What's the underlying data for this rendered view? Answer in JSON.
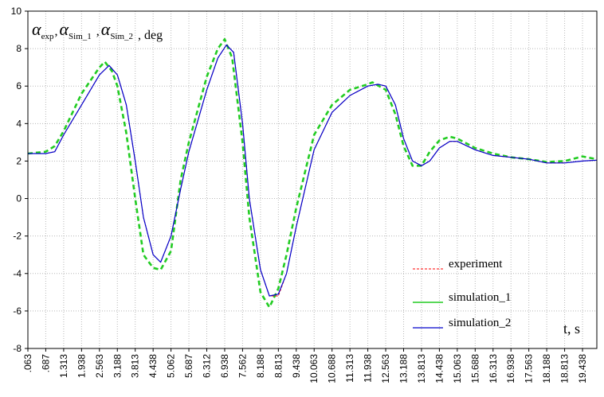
{
  "chart_data": {
    "type": "line",
    "title": "",
    "ylabel": {
      "parts": [
        {
          "sym": "α",
          "sub": "exp"
        },
        {
          "sym": "α",
          "sub": "Sim_1"
        },
        {
          "sym": "α",
          "sub": "Sim_2"
        }
      ],
      "unit": ", deg"
    },
    "xlabel": "t, s",
    "xlim": [
      0.063,
      19.938
    ],
    "ylim": [
      -8,
      10
    ],
    "yticks": [
      -8,
      -6,
      -4,
      -2,
      0,
      2,
      4,
      6,
      8,
      10
    ],
    "xticks": [
      ".063",
      ".687",
      "1.313",
      "1.938",
      "2.563",
      "3.188",
      "3.813",
      "4.438",
      "5.062",
      "5.687",
      "6.312",
      "6.938",
      "7.562",
      "8.188",
      "8.813",
      "9.438",
      "10.063",
      "10.688",
      "11.313",
      "11.938",
      "12.563",
      "13.188",
      "13.813",
      "14.438",
      "15.063",
      "15.688",
      "16.313",
      "16.938",
      "17.563",
      "18.188",
      "18.813",
      "19.438"
    ],
    "xtick_values": [
      0.063,
      0.687,
      1.313,
      1.938,
      2.563,
      3.188,
      3.813,
      4.438,
      5.062,
      5.687,
      6.312,
      6.938,
      7.562,
      8.188,
      8.813,
      9.438,
      10.063,
      10.688,
      11.313,
      11.938,
      12.563,
      13.188,
      13.813,
      14.438,
      15.063,
      15.688,
      16.313,
      16.938,
      17.563,
      18.188,
      18.813,
      19.438
    ],
    "grid": true,
    "legend_position": "bottom-right",
    "series": [
      {
        "name": "experiment",
        "color": "#ff0000",
        "style": "dashed-thin",
        "points": [
          [
            0.063,
            2.4
          ],
          [
            0.687,
            2.4
          ],
          [
            1.0,
            2.5
          ],
          [
            1.313,
            3.4
          ],
          [
            1.938,
            5.0
          ],
          [
            2.563,
            6.6
          ],
          [
            2.9,
            7.1
          ],
          [
            3.188,
            6.6
          ],
          [
            3.5,
            5.0
          ],
          [
            3.813,
            2.0
          ],
          [
            4.1,
            -1.0
          ],
          [
            4.438,
            -3.0
          ],
          [
            4.7,
            -3.4
          ],
          [
            5.062,
            -2.0
          ],
          [
            5.4,
            0.5
          ],
          [
            5.687,
            2.5
          ],
          [
            6.312,
            5.8
          ],
          [
            6.7,
            7.5
          ],
          [
            7.0,
            8.2
          ],
          [
            7.25,
            7.8
          ],
          [
            7.562,
            4.0
          ],
          [
            7.8,
            0.0
          ],
          [
            8.188,
            -3.8
          ],
          [
            8.5,
            -5.2
          ],
          [
            8.813,
            -5.2
          ],
          [
            9.1,
            -4.0
          ],
          [
            9.438,
            -1.5
          ],
          [
            10.063,
            2.6
          ],
          [
            10.688,
            4.6
          ],
          [
            11.313,
            5.5
          ],
          [
            11.938,
            6.0
          ],
          [
            12.3,
            6.1
          ],
          [
            12.563,
            6.0
          ],
          [
            12.9,
            5.0
          ],
          [
            13.188,
            3.2
          ],
          [
            13.5,
            2.0
          ],
          [
            13.813,
            1.75
          ],
          [
            14.1,
            2.0
          ],
          [
            14.438,
            2.7
          ],
          [
            14.8,
            3.05
          ],
          [
            15.063,
            3.05
          ],
          [
            15.688,
            2.6
          ],
          [
            16.313,
            2.3
          ],
          [
            16.938,
            2.2
          ],
          [
            17.563,
            2.1
          ],
          [
            18.188,
            1.9
          ],
          [
            18.813,
            1.9
          ],
          [
            19.438,
            2.0
          ],
          [
            19.938,
            2.05
          ]
        ]
      },
      {
        "name": "simulation_1",
        "color": "#22cc22",
        "style": "dashed-bold",
        "points": [
          [
            0.063,
            2.4
          ],
          [
            0.687,
            2.5
          ],
          [
            1.0,
            2.8
          ],
          [
            1.313,
            3.6
          ],
          [
            1.938,
            5.6
          ],
          [
            2.563,
            7.0
          ],
          [
            2.75,
            7.3
          ],
          [
            3.0,
            6.8
          ],
          [
            3.188,
            6.0
          ],
          [
            3.5,
            3.5
          ],
          [
            3.813,
            0.0
          ],
          [
            4.1,
            -3.0
          ],
          [
            4.438,
            -3.7
          ],
          [
            4.7,
            -3.8
          ],
          [
            5.062,
            -2.8
          ],
          [
            5.4,
            1.0
          ],
          [
            5.687,
            3.0
          ],
          [
            6.312,
            6.5
          ],
          [
            6.7,
            8.0
          ],
          [
            6.938,
            8.5
          ],
          [
            7.2,
            7.5
          ],
          [
            7.562,
            3.0
          ],
          [
            7.8,
            -1.0
          ],
          [
            8.188,
            -5.0
          ],
          [
            8.5,
            -5.8
          ],
          [
            8.813,
            -4.8
          ],
          [
            9.1,
            -3.0
          ],
          [
            9.438,
            -0.5
          ],
          [
            10.063,
            3.4
          ],
          [
            10.688,
            5.0
          ],
          [
            11.313,
            5.8
          ],
          [
            11.938,
            6.1
          ],
          [
            12.1,
            6.2
          ],
          [
            12.563,
            5.8
          ],
          [
            12.9,
            4.5
          ],
          [
            13.188,
            2.8
          ],
          [
            13.5,
            1.75
          ],
          [
            13.813,
            1.75
          ],
          [
            14.1,
            2.5
          ],
          [
            14.438,
            3.1
          ],
          [
            14.8,
            3.3
          ],
          [
            15.063,
            3.2
          ],
          [
            15.688,
            2.7
          ],
          [
            16.313,
            2.4
          ],
          [
            16.938,
            2.2
          ],
          [
            17.563,
            2.1
          ],
          [
            18.188,
            1.95
          ],
          [
            18.813,
            2.0
          ],
          [
            19.438,
            2.25
          ],
          [
            19.938,
            2.1
          ]
        ]
      },
      {
        "name": "simulation_2",
        "color": "#0000cc",
        "style": "solid",
        "points": [
          [
            0.063,
            2.4
          ],
          [
            0.687,
            2.4
          ],
          [
            1.0,
            2.5
          ],
          [
            1.313,
            3.4
          ],
          [
            1.938,
            5.0
          ],
          [
            2.563,
            6.6
          ],
          [
            2.9,
            7.1
          ],
          [
            3.188,
            6.6
          ],
          [
            3.5,
            5.0
          ],
          [
            3.813,
            2.0
          ],
          [
            4.1,
            -1.0
          ],
          [
            4.438,
            -3.0
          ],
          [
            4.7,
            -3.4
          ],
          [
            5.062,
            -2.0
          ],
          [
            5.4,
            0.5
          ],
          [
            5.687,
            2.5
          ],
          [
            6.312,
            5.8
          ],
          [
            6.7,
            7.5
          ],
          [
            7.0,
            8.2
          ],
          [
            7.25,
            7.8
          ],
          [
            7.562,
            4.0
          ],
          [
            7.8,
            0.0
          ],
          [
            8.188,
            -3.8
          ],
          [
            8.5,
            -5.2
          ],
          [
            8.813,
            -5.1
          ],
          [
            9.1,
            -4.0
          ],
          [
            9.438,
            -1.5
          ],
          [
            10.063,
            2.6
          ],
          [
            10.688,
            4.6
          ],
          [
            11.313,
            5.5
          ],
          [
            11.938,
            6.0
          ],
          [
            12.3,
            6.1
          ],
          [
            12.563,
            6.0
          ],
          [
            12.9,
            5.0
          ],
          [
            13.188,
            3.2
          ],
          [
            13.5,
            2.0
          ],
          [
            13.813,
            1.75
          ],
          [
            14.1,
            2.0
          ],
          [
            14.438,
            2.7
          ],
          [
            14.8,
            3.05
          ],
          [
            15.063,
            3.05
          ],
          [
            15.688,
            2.6
          ],
          [
            16.313,
            2.3
          ],
          [
            16.938,
            2.2
          ],
          [
            17.563,
            2.1
          ],
          [
            18.188,
            1.9
          ],
          [
            18.813,
            1.9
          ],
          [
            19.438,
            2.0
          ],
          [
            19.938,
            2.05
          ]
        ]
      }
    ]
  }
}
